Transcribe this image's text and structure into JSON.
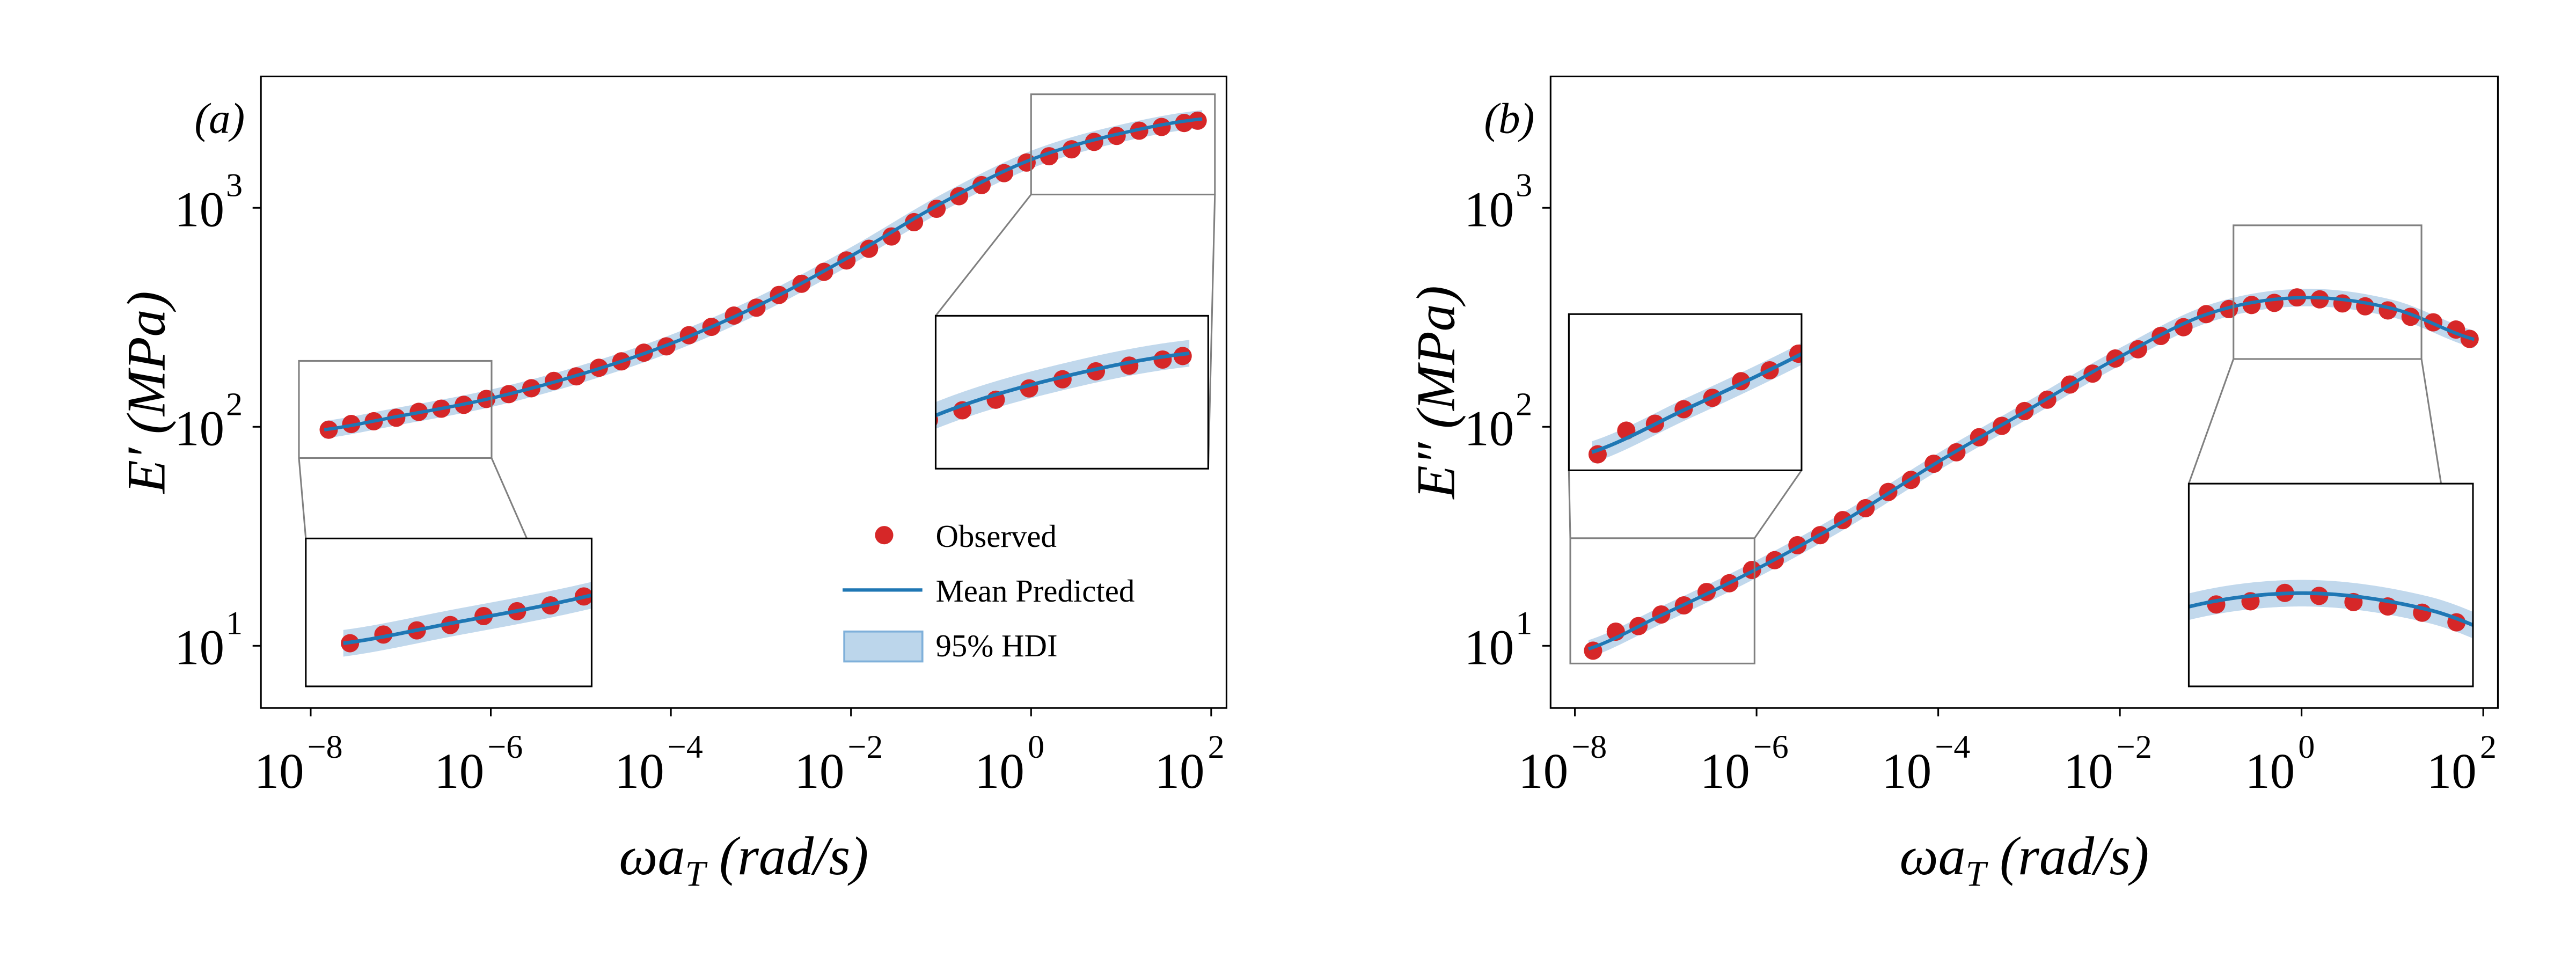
{
  "colors": {
    "observed": "#d62728",
    "predicted": "#1f77b4",
    "hdi": "#a6c8e4",
    "source_box": "#808080",
    "inset_box": "#000000"
  },
  "legend": {
    "observed": "Observed",
    "predicted": "Mean Predicted",
    "hdi": "95% HDI",
    "placement": "lower-right"
  },
  "chart_data": [
    {
      "type": "scatter",
      "panel_label": "(a)",
      "ylabel": "E′ (MPa)",
      "xlabel": "ωa_T (rad/s)",
      "xlabel_main": "ωa",
      "xlabel_sub": "T",
      "xlabel_units": " (rad/s)",
      "xscale": "log",
      "yscale": "log",
      "xlim": [
        2.8e-09,
        148
      ],
      "ylim": [
        5.2,
        3980
      ],
      "x_ticks": [
        {
          "base": "10",
          "exp": "−8",
          "v": -8
        },
        {
          "base": "10",
          "exp": "−6",
          "v": -6
        },
        {
          "base": "10",
          "exp": "−4",
          "v": -4
        },
        {
          "base": "10",
          "exp": "−2",
          "v": -2
        },
        {
          "base": "10",
          "exp": "0",
          "v": 0
        },
        {
          "base": "10",
          "exp": "2",
          "v": 2
        }
      ],
      "y_ticks": [
        {
          "base": "10",
          "exp": "1",
          "v": 1
        },
        {
          "base": "10",
          "exp": "2",
          "v": 2
        },
        {
          "base": "10",
          "exp": "3",
          "v": 3
        }
      ],
      "grid": false,
      "log10_x": [
        -7.8,
        -7.55,
        -7.3,
        -7.05,
        -6.8,
        -6.55,
        -6.3,
        -6.05,
        -5.8,
        -5.55,
        -5.3,
        -5.05,
        -4.8,
        -4.55,
        -4.3,
        -4.05,
        -3.8,
        -3.55,
        -3.3,
        -3.05,
        -2.8,
        -2.55,
        -2.3,
        -2.05,
        -1.8,
        -1.55,
        -1.3,
        -1.05,
        -0.8,
        -0.55,
        -0.3,
        -0.05,
        0.2,
        0.45,
        0.7,
        0.95,
        1.2,
        1.45,
        1.7,
        1.85
      ],
      "observed": [
        97,
        103,
        106,
        110,
        117,
        121,
        126,
        134,
        141,
        150,
        162,
        170,
        186,
        199,
        218,
        233,
        262,
        286,
        322,
        350,
        400,
        450,
        510,
        575,
        650,
        740,
        860,
        990,
        1130,
        1270,
        1440,
        1610,
        1720,
        1850,
        2000,
        2130,
        2250,
        2340,
        2440,
        2500
      ],
      "predicted": {
        "log10_x": [
          -8,
          -7,
          -6,
          -5,
          -4,
          -3,
          -2,
          -1,
          0,
          1,
          2
        ],
        "values": [
          95.5,
          112.2,
          134.9,
          173.8,
          239.9,
          363.1,
          602.6,
          1047,
          1660,
          2188,
          2570
        ]
      },
      "hdi_relative_width": 0.04,
      "insets": [
        {
          "xlim": [
            7.4e-09,
            1.02e-06
          ],
          "ylim": [
            72,
            200
          ]
        },
        {
          "xlim": [
            1.0,
            110
          ],
          "ylim": [
            1150,
            3300
          ]
        }
      ]
    },
    {
      "type": "scatter",
      "panel_label": "(b)",
      "ylabel": "E″ (MPa)",
      "xlabel": "ωa_T (rad/s)",
      "xlabel_main": "ωa",
      "xlabel_sub": "T",
      "xlabel_units": " (rad/s)",
      "xscale": "log",
      "yscale": "log",
      "xlim": [
        5.4e-09,
        145
      ],
      "ylim": [
        5.2,
        3980
      ],
      "x_ticks": [
        {
          "base": "10",
          "exp": "−8",
          "v": -8
        },
        {
          "base": "10",
          "exp": "−6",
          "v": -6
        },
        {
          "base": "10",
          "exp": "−4",
          "v": -4
        },
        {
          "base": "10",
          "exp": "−2",
          "v": -2
        },
        {
          "base": "10",
          "exp": "0",
          "v": 0
        },
        {
          "base": "10",
          "exp": "2",
          "v": 2
        }
      ],
      "y_ticks": [
        {
          "base": "10",
          "exp": "1",
          "v": 1
        },
        {
          "base": "10",
          "exp": "2",
          "v": 2
        },
        {
          "base": "10",
          "exp": "3",
          "v": 3
        }
      ],
      "grid": false,
      "log10_x": [
        -7.8,
        -7.55,
        -7.3,
        -7.05,
        -6.8,
        -6.55,
        -6.3,
        -6.05,
        -5.8,
        -5.55,
        -5.3,
        -5.05,
        -4.8,
        -4.55,
        -4.3,
        -4.05,
        -3.8,
        -3.55,
        -3.3,
        -3.05,
        -2.8,
        -2.55,
        -2.3,
        -2.05,
        -1.8,
        -1.55,
        -1.3,
        -1.05,
        -0.8,
        -0.55,
        -0.3,
        -0.05,
        0.2,
        0.45,
        0.7,
        0.95,
        1.2,
        1.45,
        1.7,
        1.85
      ],
      "observed": [
        9.5,
        11.6,
        12.3,
        13.9,
        15.3,
        17.6,
        19.3,
        22.2,
        24.6,
        28.8,
        32.0,
        37.5,
        42.5,
        50.4,
        57.2,
        67.8,
        76.5,
        89.6,
        101,
        118,
        133,
        156,
        175,
        205,
        226,
        260,
        285,
        327,
        345,
        360,
        368,
        390,
        382,
        366,
        355,
        340,
        318,
        300,
        278,
        252
      ],
      "predicted": {
        "log10_x": [
          -8,
          -7,
          -6,
          -5,
          -4,
          -3,
          -2,
          -1,
          0,
          1,
          2
        ],
        "values": [
          9.3,
          14.1,
          22.4,
          38.0,
          69.2,
          120.2,
          208.9,
          331.1,
          389.0,
          346.7,
          245.5
        ]
      },
      "hdi_relative_width": 0.04,
      "insets": [
        {
          "xlim": [
            8.9e-09,
            9.5e-07
          ],
          "ylim": [
            8.3,
            31
          ]
        },
        {
          "xlim": [
            0.178,
            20.9
          ],
          "ylim": [
            204,
            832
          ]
        }
      ]
    }
  ]
}
